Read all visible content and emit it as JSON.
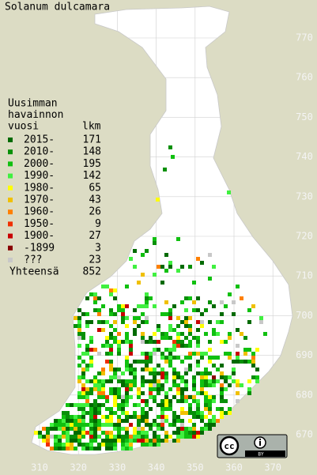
{
  "title": "Solanum dulcamara",
  "legend": {
    "header": [
      "Uusimman",
      "havainnon",
      "vuosi"
    ],
    "count_header": "lkm",
    "rows": [
      {
        "label": "2015-",
        "count": "171",
        "color": "#006a00"
      },
      {
        "label": "2010-",
        "count": "148",
        "color": "#089008"
      },
      {
        "label": "2000-",
        "count": "195",
        "color": "#10c010"
      },
      {
        "label": "1990-",
        "count": "142",
        "color": "#40f040"
      },
      {
        "label": "1980-",
        "count": "65",
        "color": "#ffff00"
      },
      {
        "label": "1970-",
        "count": "43",
        "color": "#f0c000"
      },
      {
        "label": "1960-",
        "count": "26",
        "color": "#ff8000"
      },
      {
        "label": "1950-",
        "count": "9",
        "color": "#f03000"
      },
      {
        "label": "1900-",
        "count": "27",
        "color": "#c80000"
      },
      {
        "label": "-1899",
        "count": "3",
        "color": "#880000"
      },
      {
        "label": "???",
        "count": "23",
        "color": "#c8c8c8"
      }
    ],
    "total_label": "Yhteensä",
    "total": "852"
  },
  "x_labels": [
    "310",
    "320",
    "330",
    "340",
    "350",
    "360",
    "370"
  ],
  "y_labels": [
    "770",
    "760",
    "750",
    "740",
    "730",
    "720",
    "710",
    "700",
    "690",
    "680",
    "670"
  ],
  "license": "BY"
}
